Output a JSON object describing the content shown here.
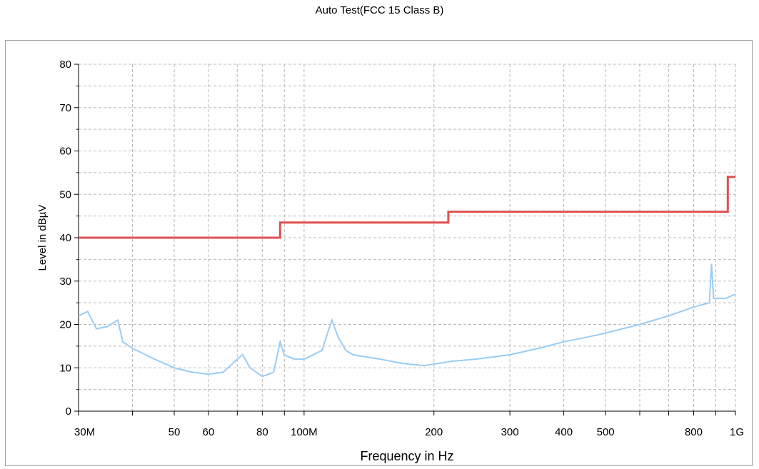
{
  "chart_data": {
    "type": "line",
    "title": "Auto Test(FCC 15 Class B)",
    "xlabel": "Frequency in Hz",
    "ylabel": "Level in dBµV",
    "x_scale": "log",
    "xlim": [
      30000000,
      1000000000
    ],
    "ylim": [
      0,
      80
    ],
    "grid": true,
    "x_ticks": [
      {
        "value": 30000000,
        "label": "30M"
      },
      {
        "value": 50000000,
        "label": "50"
      },
      {
        "value": 60000000,
        "label": "60"
      },
      {
        "value": 80000000,
        "label": "80"
      },
      {
        "value": 100000000,
        "label": "100M"
      },
      {
        "value": 200000000,
        "label": "200"
      },
      {
        "value": 300000000,
        "label": "300"
      },
      {
        "value": 400000000,
        "label": "400"
      },
      {
        "value": 500000000,
        "label": "500"
      },
      {
        "value": 800000000,
        "label": "800"
      },
      {
        "value": 1000000000,
        "label": "1G"
      }
    ],
    "x_grid_values": [
      30000000,
      40000000,
      50000000,
      60000000,
      70000000,
      80000000,
      90000000,
      100000000,
      200000000,
      300000000,
      400000000,
      500000000,
      600000000,
      700000000,
      800000000,
      900000000,
      1000000000
    ],
    "y_ticks": [
      0,
      10,
      20,
      30,
      40,
      50,
      60,
      70,
      80
    ],
    "series": [
      {
        "color": "#e05050",
        "x": [
          30000000,
          88000000,
          88000000,
          216000000,
          216000000,
          960000000,
          960000000,
          1000000000
        ],
        "y": [
          40,
          40,
          43.5,
          43.5,
          46,
          46,
          54,
          54
        ]
      },
      {
        "color": "#99ccf5",
        "x": [
          30000000,
          31500000,
          33000000,
          35000000,
          37000000,
          38000000,
          40000000,
          45000000,
          50000000,
          55000000,
          60000000,
          65000000,
          70000000,
          72000000,
          75000000,
          80000000,
          85000000,
          88000000,
          90000000,
          95000000,
          100000000,
          110000000,
          116000000,
          120000000,
          125000000,
          130000000,
          150000000,
          170000000,
          190000000,
          220000000,
          250000000,
          300000000,
          350000000,
          400000000,
          450000000,
          500000000,
          600000000,
          700000000,
          800000000,
          870000000,
          880000000,
          890000000,
          950000000,
          1000000000
        ],
        "y": [
          22,
          23,
          19,
          19.5,
          21,
          16,
          14.5,
          12,
          10,
          9,
          8.5,
          9,
          12,
          13,
          10,
          8,
          9,
          16,
          13,
          12,
          12,
          14,
          21,
          17,
          14,
          13,
          12,
          11,
          10.5,
          11.5,
          12,
          13,
          14.5,
          16,
          17,
          18,
          20,
          22,
          24,
          25,
          34,
          26,
          26,
          27
        ]
      }
    ]
  }
}
